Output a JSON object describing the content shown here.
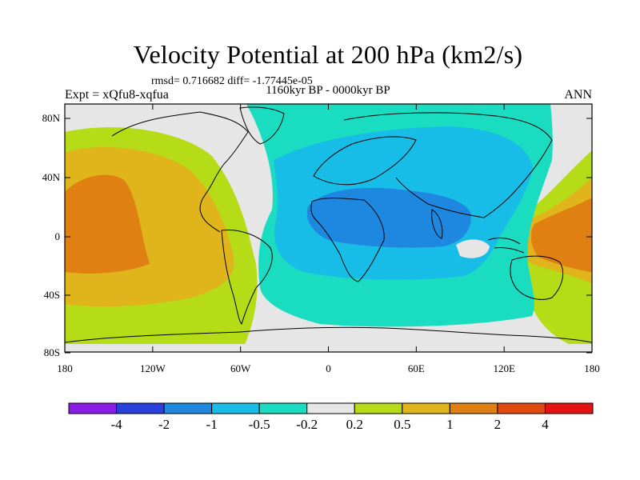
{
  "title": "Velocity Potential at 200 hPa (km2/s)",
  "stats": "rmsd= 0.716682 diff= -1.77445e-05",
  "left_label": "Expt = xQfu8-xqfua",
  "center_label": "1160kyr BP - 0000kyr BP",
  "right_label": "ANN",
  "axes": {
    "x_ticks": [
      "180",
      "120W",
      "60W",
      "0",
      "60E",
      "120E",
      "180"
    ],
    "y_ticks": [
      "80N",
      "40N",
      "0",
      "40S",
      "80S"
    ]
  },
  "colorbar": {
    "colors": [
      "#8a1ce8",
      "#2a3fdc",
      "#1e88e0",
      "#17bde6",
      "#19dcc1",
      "#e6e6e6",
      "#b5dc17",
      "#e0b41b",
      "#e07f12",
      "#e04a10",
      "#e61212"
    ],
    "labels": [
      "-4",
      "-2",
      "-1",
      "-0.5",
      "-0.2",
      "0.2",
      "0.5",
      "1",
      "2",
      "4"
    ]
  }
}
